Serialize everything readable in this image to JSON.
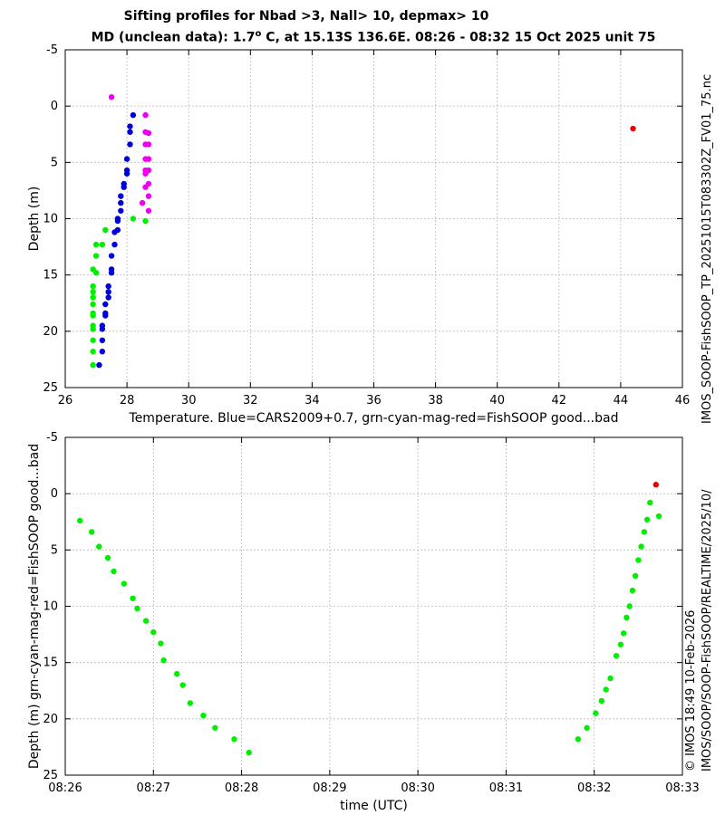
{
  "title": {
    "line1": "Sifting profiles for Nbad >3, Nall> 10, depmax> 10",
    "line2_pre": "MD (unclean data): 1.7",
    "line2_deg": "o",
    "line2_post": " C, at 15.13S 136.6E. 08:26 - 08:32 15 Oct 2025 unit 75"
  },
  "side": {
    "filename": "IMOS_SOOP-FishSOOP_TP_20251015T083302Z_FV01_75.nc",
    "copyright": "© IMOS 18:49 10-Feb-2026",
    "path": "IMOS/SOOP/SOOP-FishSOOP/REALTIME/2025/10/"
  },
  "colors": {
    "blue": "#0000dd",
    "green": "#00ee00",
    "magenta": "#ee00ee",
    "red": "#ee0000",
    "grid": "#bbbbbb"
  },
  "chart_data": [
    {
      "type": "scatter",
      "title": "Sifting profiles for Nbad >3, Nall> 10, depmax> 10",
      "xlabel": "Temperature. Blue=CARS2009+0.7, grn-cyan-mag-red=FishSOOP good...bad",
      "ylabel": "Depth (m)",
      "xlim": [
        26,
        46
      ],
      "ylim": [
        -5,
        25
      ],
      "y_inverted": true,
      "grid": true,
      "xticks": [
        26,
        28,
        30,
        32,
        34,
        36,
        38,
        40,
        42,
        44,
        46
      ],
      "yticks": [
        -5,
        0,
        5,
        10,
        15,
        20,
        25
      ],
      "series": [
        {
          "name": "CARS2009+0.7",
          "color": "blue",
          "points": [
            [
              28.2,
              0.8
            ],
            [
              28.1,
              1.8
            ],
            [
              28.1,
              2.3
            ],
            [
              28.1,
              3.4
            ],
            [
              28.0,
              4.7
            ],
            [
              28.0,
              5.7
            ],
            [
              28.0,
              6.0
            ],
            [
              27.9,
              6.9
            ],
            [
              27.9,
              7.2
            ],
            [
              27.8,
              8.0
            ],
            [
              27.8,
              8.6
            ],
            [
              27.8,
              9.3
            ],
            [
              27.7,
              10.0
            ],
            [
              27.7,
              10.2
            ],
            [
              27.7,
              11.0
            ],
            [
              27.6,
              11.2
            ],
            [
              27.6,
              12.3
            ],
            [
              27.5,
              13.3
            ],
            [
              27.5,
              14.5
            ],
            [
              27.5,
              14.8
            ],
            [
              27.4,
              16.0
            ],
            [
              27.4,
              16.5
            ],
            [
              27.4,
              17.0
            ],
            [
              27.3,
              17.6
            ],
            [
              27.3,
              18.4
            ],
            [
              27.3,
              18.6
            ],
            [
              27.2,
              19.5
            ],
            [
              27.2,
              19.8
            ],
            [
              27.2,
              20.8
            ],
            [
              27.2,
              21.8
            ],
            [
              27.1,
              23.0
            ]
          ]
        },
        {
          "name": "FishSOOP good (green)",
          "color": "green",
          "points": [
            [
              28.2,
              10.0
            ],
            [
              28.6,
              10.2
            ],
            [
              27.3,
              11.0
            ],
            [
              27.0,
              12.3
            ],
            [
              27.2,
              12.3
            ],
            [
              27.0,
              13.3
            ],
            [
              26.9,
              14.5
            ],
            [
              27.0,
              14.8
            ],
            [
              26.9,
              16.0
            ],
            [
              26.9,
              16.5
            ],
            [
              26.9,
              17.0
            ],
            [
              26.9,
              17.6
            ],
            [
              26.9,
              18.4
            ],
            [
              26.9,
              18.6
            ],
            [
              26.9,
              19.5
            ],
            [
              26.9,
              19.8
            ],
            [
              26.9,
              20.8
            ],
            [
              26.9,
              21.8
            ],
            [
              26.9,
              23.0
            ]
          ]
        },
        {
          "name": "FishSOOP (magenta)",
          "color": "magenta",
          "points": [
            [
              27.5,
              -0.8
            ],
            [
              28.6,
              0.8
            ],
            [
              28.6,
              2.3
            ],
            [
              28.7,
              2.4
            ],
            [
              28.6,
              3.4
            ],
            [
              28.7,
              3.4
            ],
            [
              28.6,
              4.7
            ],
            [
              28.7,
              4.7
            ],
            [
              28.6,
              5.7
            ],
            [
              28.7,
              5.7
            ],
            [
              28.6,
              6.0
            ],
            [
              28.7,
              6.9
            ],
            [
              28.6,
              7.2
            ],
            [
              28.7,
              8.0
            ],
            [
              28.5,
              8.6
            ],
            [
              28.7,
              9.3
            ]
          ]
        },
        {
          "name": "FishSOOP bad (red)",
          "color": "red",
          "points": [
            [
              44.4,
              2.0
            ]
          ]
        }
      ]
    },
    {
      "type": "scatter",
      "xlabel": "time (UTC)",
      "ylabel": "Depth (m) grn-cyan-mag-red=FishSOOP good...bad",
      "xlim": [
        "08:26",
        "08:33"
      ],
      "ylim": [
        -5,
        25
      ],
      "y_inverted": true,
      "grid": true,
      "xticks": [
        "08:26",
        "08:27",
        "08:28",
        "08:29",
        "08:30",
        "08:31",
        "08:32",
        "08:33"
      ],
      "yticks": [
        -5,
        0,
        5,
        10,
        15,
        20,
        25
      ],
      "series": [
        {
          "name": "good (green)",
          "color": "green",
          "points": [
            [
              "08:26:10",
              2.4
            ],
            [
              "08:26:18",
              3.4
            ],
            [
              "08:26:23",
              4.7
            ],
            [
              "08:26:29",
              5.7
            ],
            [
              "08:26:33",
              6.9
            ],
            [
              "08:26:40",
              8.0
            ],
            [
              "08:26:46",
              9.3
            ],
            [
              "08:26:49",
              10.2
            ],
            [
              "08:26:55",
              11.3
            ],
            [
              "08:27:00",
              12.3
            ],
            [
              "08:27:05",
              13.3
            ],
            [
              "08:27:07",
              14.8
            ],
            [
              "08:27:16",
              16.0
            ],
            [
              "08:27:20",
              17.0
            ],
            [
              "08:27:25",
              18.6
            ],
            [
              "08:27:34",
              19.7
            ],
            [
              "08:27:42",
              20.8
            ],
            [
              "08:27:55",
              21.8
            ],
            [
              "08:28:05",
              23.0
            ],
            [
              "08:31:49",
              21.8
            ],
            [
              "08:31:55",
              20.8
            ],
            [
              "08:32:01",
              19.5
            ],
            [
              "08:32:05",
              18.4
            ],
            [
              "08:32:08",
              17.4
            ],
            [
              "08:32:11",
              16.4
            ],
            [
              "08:32:15",
              14.4
            ],
            [
              "08:32:18",
              13.4
            ],
            [
              "08:32:20",
              12.4
            ],
            [
              "08:32:22",
              11.0
            ],
            [
              "08:32:24",
              10.0
            ],
            [
              "08:32:26",
              8.6
            ],
            [
              "08:32:28",
              7.3
            ],
            [
              "08:32:30",
              5.9
            ],
            [
              "08:32:32",
              4.7
            ],
            [
              "08:32:34",
              3.4
            ],
            [
              "08:32:36",
              2.3
            ],
            [
              "08:32:38",
              0.8
            ],
            [
              "08:32:44",
              2.0
            ]
          ]
        },
        {
          "name": "bad (red)",
          "color": "red",
          "points": [
            [
              "08:32:42",
              -0.8
            ]
          ]
        }
      ]
    }
  ]
}
